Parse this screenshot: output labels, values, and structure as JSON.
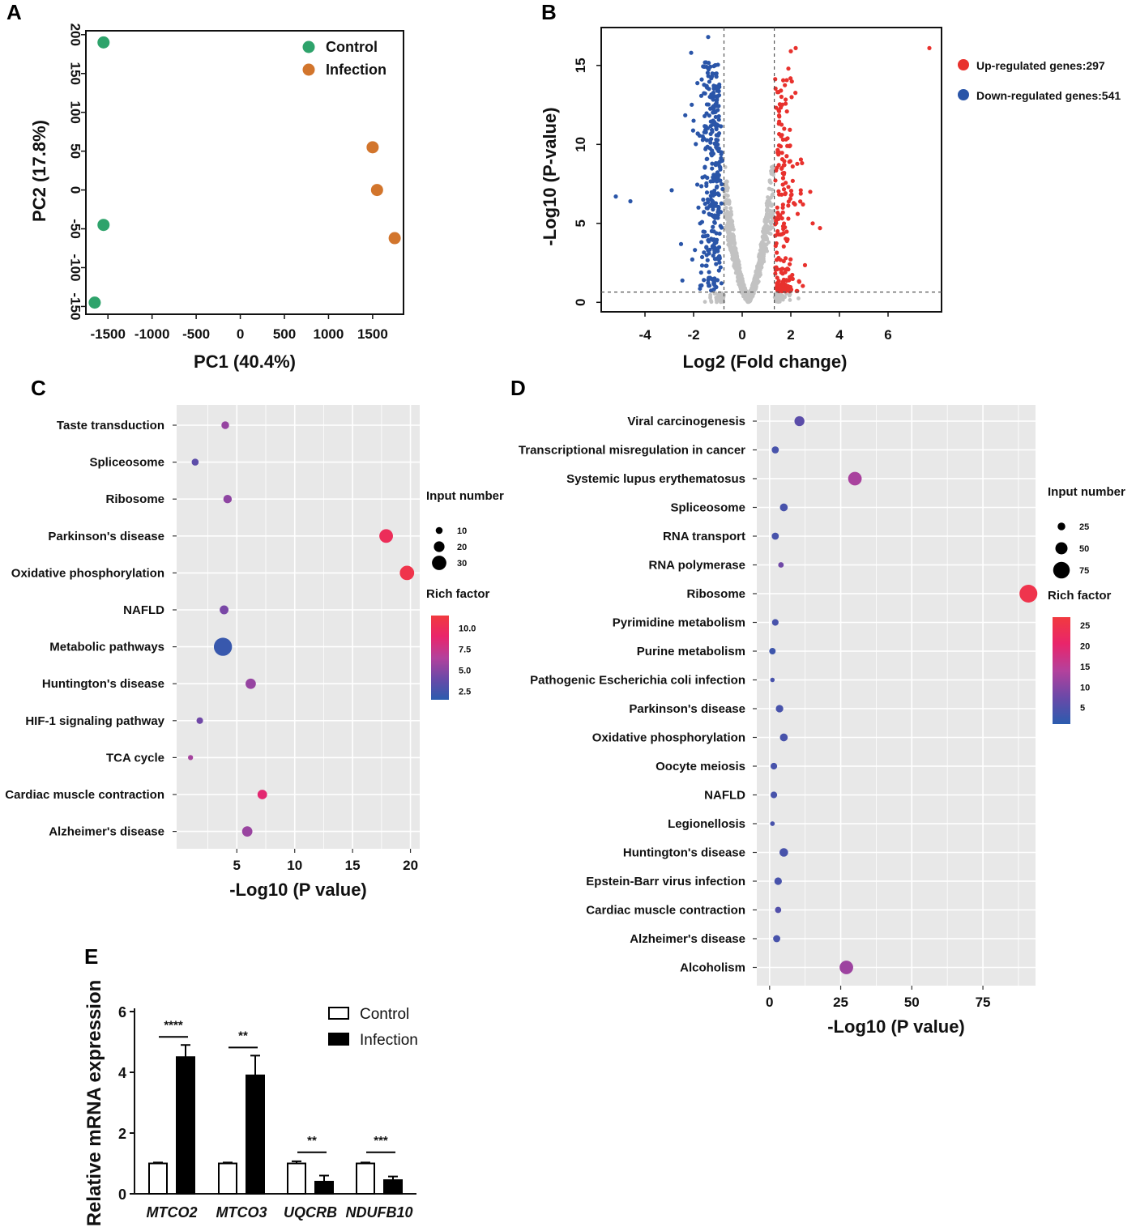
{
  "panels": {
    "a": "A",
    "b": "B",
    "c": "C",
    "d": "D",
    "e": "E"
  },
  "chart_data": [
    {
      "id": "A",
      "type": "scatter",
      "xlabel": "PC1  (40.4%)",
      "ylabel": "PC2  (17.8%)",
      "xlim": [
        -1750,
        1850
      ],
      "ylim": [
        -160,
        205
      ],
      "xticks": [
        -1500,
        -1000,
        -500,
        0,
        500,
        1000,
        1500
      ],
      "yticks": [
        -150,
        -100,
        -50,
        0,
        50,
        100,
        150,
        200
      ],
      "series": [
        {
          "name": "Control",
          "color": "#2ea36b",
          "points": [
            [
              -1550,
              190
            ],
            [
              -1550,
              -45
            ],
            [
              -1650,
              -145
            ]
          ]
        },
        {
          "name": "Infection",
          "color": "#d2752c",
          "points": [
            [
              1500,
              55
            ],
            [
              1550,
              0
            ],
            [
              1750,
              -62
            ]
          ]
        }
      ]
    },
    {
      "id": "B",
      "type": "scatter",
      "xlabel": "Log2  (Fold change)",
      "ylabel": "-Log10 (P-value)",
      "xlim": [
        -5.8,
        8.2
      ],
      "ylim": [
        -0.6,
        17.4
      ],
      "xticks": [
        -4,
        -2,
        0,
        2,
        4,
        6
      ],
      "yticks": [
        0,
        5,
        10,
        15
      ],
      "thresholds": {
        "log2fc": [
          -0.75,
          1.32
        ],
        "neglog10p": 0.65
      },
      "legend": {
        "up": "Up-regulated genes:297",
        "down": "Down-regulated genes:541"
      },
      "colors": {
        "up": "#e8312d",
        "down": "#2a55a8",
        "ns": "#c2c2c2"
      },
      "up_points": [
        [
          7.7,
          16.1
        ],
        [
          2.2,
          16.1
        ],
        [
          2.0,
          15.9
        ],
        [
          1.9,
          14.8
        ],
        [
          3.2,
          4.7
        ],
        [
          2.8,
          7.0
        ],
        [
          2.9,
          5.0
        ],
        [
          2.5,
          6.2
        ]
      ],
      "down_points": [
        [
          -5.2,
          6.7
        ],
        [
          -4.6,
          6.4
        ],
        [
          -2.9,
          7.1
        ],
        [
          -1.4,
          16.8
        ],
        [
          -2.1,
          15.8
        ],
        [
          -2.0,
          11.5
        ],
        [
          -1.8,
          6.0
        ]
      ]
    },
    {
      "id": "C",
      "type": "bubble",
      "xlabel": "-Log10  (P value)",
      "xlim": [
        -0.2,
        20.8
      ],
      "xticks": [
        5,
        10,
        15,
        20
      ],
      "size_legend": {
        "title": "Input number",
        "values": [
          10,
          20,
          30
        ]
      },
      "color_legend": {
        "title": "Rich factor",
        "ticks": [
          "10.0",
          "7.5",
          "5.0",
          "2.5"
        ],
        "range": [
          1.5,
          11.5
        ]
      },
      "terms": [
        {
          "name": "Taste transduction",
          "x": 4.0,
          "size": 12,
          "rich": 5.5
        },
        {
          "name": "Spliceosome",
          "x": 1.4,
          "size": 10,
          "rich": 3.5
        },
        {
          "name": "Ribosome",
          "x": 4.2,
          "size": 14,
          "rich": 5.2
        },
        {
          "name": "Parkinson's disease",
          "x": 17.9,
          "size": 28,
          "rich": 10.0
        },
        {
          "name": "Oxidative phosphorylation",
          "x": 19.7,
          "size": 30,
          "rich": 10.8
        },
        {
          "name": "NAFLD",
          "x": 3.9,
          "size": 15,
          "rich": 4.5
        },
        {
          "name": "Metabolic pathways",
          "x": 3.8,
          "size": 40,
          "rich": 2.0
        },
        {
          "name": "Huntington's disease",
          "x": 6.2,
          "size": 19,
          "rich": 5.5
        },
        {
          "name": "HIF-1 signaling pathway",
          "x": 1.8,
          "size": 9,
          "rich": 4.2
        },
        {
          "name": "TCA cycle",
          "x": 1.0,
          "size": 5,
          "rich": 6.0
        },
        {
          "name": "Cardiac muscle contraction",
          "x": 7.2,
          "size": 17,
          "rich": 8.7
        },
        {
          "name": "Alzheimer's disease",
          "x": 5.9,
          "size": 19,
          "rich": 5.6
        }
      ]
    },
    {
      "id": "D",
      "type": "bubble",
      "xlabel": "-Log10  (P value)",
      "xlim": [
        -4.5,
        93.5
      ],
      "xticks": [
        0,
        25,
        50,
        75
      ],
      "size_legend": {
        "title": "Input number",
        "values": [
          25,
          50,
          75
        ]
      },
      "color_legend": {
        "title": "Rich factor",
        "ticks": [
          "25",
          "20",
          "15",
          "10",
          "5"
        ],
        "range": [
          1,
          27
        ]
      },
      "terms": [
        {
          "name": "Viral carcinogenesis",
          "x": 10.5,
          "size": 38,
          "rich": 6
        },
        {
          "name": "Transcriptional misregulation in cancer",
          "x": 2.0,
          "size": 22,
          "rich": 4
        },
        {
          "name": "Systemic lupus erythematosus",
          "x": 30.0,
          "size": 58,
          "rich": 13
        },
        {
          "name": "Spliceosome",
          "x": 5.0,
          "size": 26,
          "rich": 4
        },
        {
          "name": "RNA transport",
          "x": 2.0,
          "size": 22,
          "rich": 4
        },
        {
          "name": "RNA polymerase",
          "x": 4.0,
          "size": 13,
          "rich": 8
        },
        {
          "name": "Ribosome",
          "x": 91.0,
          "size": 82,
          "rich": 25
        },
        {
          "name": "Pyrimidine metabolism",
          "x": 2.0,
          "size": 19,
          "rich": 4
        },
        {
          "name": "Purine metabolism",
          "x": 1.0,
          "size": 18,
          "rich": 3
        },
        {
          "name": "Pathogenic Escherichia coli infection",
          "x": 1.0,
          "size": 7,
          "rich": 4
        },
        {
          "name": "Parkinson's disease",
          "x": 3.5,
          "size": 24,
          "rich": 4
        },
        {
          "name": "Oxidative phosphorylation",
          "x": 5.0,
          "size": 26,
          "rich": 4
        },
        {
          "name": "Oocyte meiosis",
          "x": 1.5,
          "size": 19,
          "rich": 4
        },
        {
          "name": "NAFLD",
          "x": 1.5,
          "size": 19,
          "rich": 4
        },
        {
          "name": "Legionellosis",
          "x": 1.0,
          "size": 8,
          "rich": 4
        },
        {
          "name": "Huntington's disease",
          "x": 5.0,
          "size": 30,
          "rich": 4
        },
        {
          "name": "Epstein-Barr virus infection",
          "x": 3.0,
          "size": 24,
          "rich": 4
        },
        {
          "name": "Cardiac muscle contraction",
          "x": 3.0,
          "size": 17,
          "rich": 5
        },
        {
          "name": "Alzheimer's disease",
          "x": 2.5,
          "size": 22,
          "rich": 4
        },
        {
          "name": "Alcoholism",
          "x": 27.0,
          "size": 58,
          "rich": 12
        }
      ]
    },
    {
      "id": "E",
      "type": "bar",
      "ylabel": "Relative mRNA expression",
      "ylim": [
        0,
        6
      ],
      "yticks": [
        0,
        2,
        4,
        6
      ],
      "categories": [
        "MTCO2",
        "MTCO3",
        "UQCRB",
        "NDUFB10"
      ],
      "series": [
        {
          "name": "Control",
          "values": [
            1.0,
            1.0,
            1.0,
            1.0
          ],
          "err": [
            0.03,
            0.03,
            0.07,
            0.03
          ]
        },
        {
          "name": "Infection",
          "values": [
            4.5,
            3.9,
            0.4,
            0.45
          ],
          "err": [
            0.4,
            0.65,
            0.2,
            0.12
          ]
        }
      ],
      "significance": [
        "****",
        "**",
        "**",
        "***"
      ]
    }
  ]
}
